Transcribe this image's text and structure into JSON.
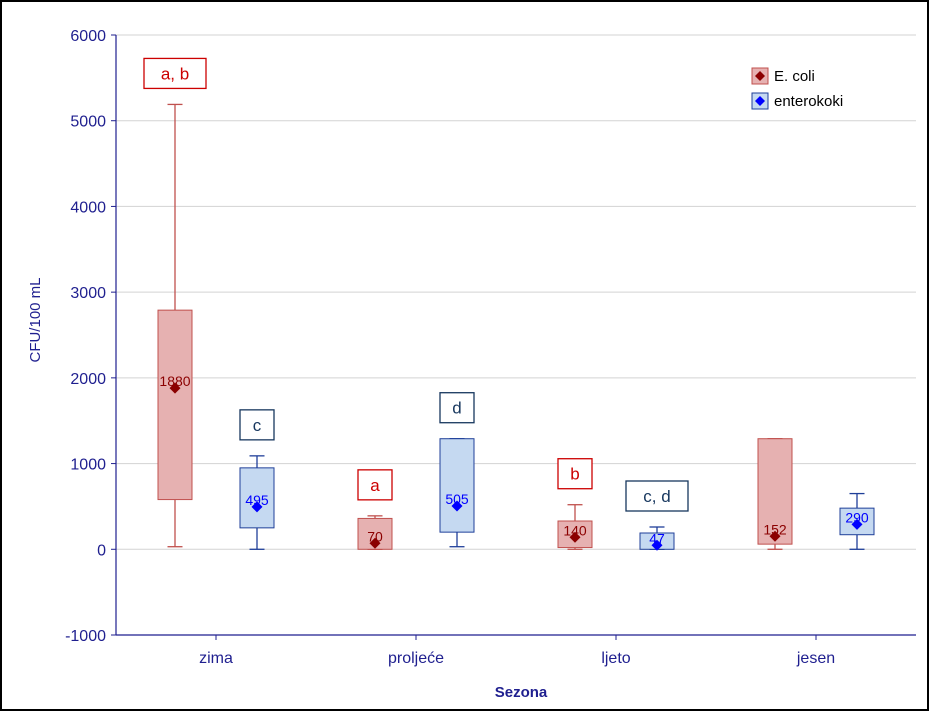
{
  "chart_data": {
    "type": "box",
    "xlabel": "Sezona",
    "ylabel": "CFU/100 mL",
    "ylim": [
      -1000,
      6000
    ],
    "yticks": [
      -1000,
      0,
      1000,
      2000,
      3000,
      4000,
      5000,
      6000
    ],
    "categories": [
      "zima",
      "proljeće",
      "ljeto",
      "jesen"
    ],
    "grid": "horizontal",
    "legend_position": "top-right",
    "series": [
      {
        "name": "E. coli",
        "box_color": "#e6b1b1",
        "line_color": "#c0504d",
        "marker_color": "#8b0000",
        "label_color": "#8b0000",
        "boxes": [
          {
            "category": "zima",
            "whisker_low": 30,
            "q1": 580,
            "median": 1880,
            "q3": 2790,
            "whisker_high": 5190,
            "median_label": "1880",
            "sig_label": "a, b"
          },
          {
            "category": "proljeće",
            "whisker_low": 0,
            "q1": 0,
            "median": 70,
            "q3": 360,
            "whisker_high": 390,
            "median_label": "70",
            "sig_label": "a"
          },
          {
            "category": "ljeto",
            "whisker_low": 0,
            "q1": 20,
            "median": 140,
            "q3": 330,
            "whisker_high": 520,
            "median_label": "140",
            "sig_label": "b"
          },
          {
            "category": "jesen",
            "whisker_low": 0,
            "q1": 60,
            "median": 152,
            "q3": 1290,
            "whisker_high": 1290,
            "median_label": "152",
            "sig_label": ""
          }
        ]
      },
      {
        "name": "enterokoki",
        "box_color": "#c5d9f1",
        "line_color": "#1f3f99",
        "marker_color": "#0000ff",
        "label_color": "#0000ff",
        "boxes": [
          {
            "category": "zima",
            "whisker_low": 0,
            "q1": 250,
            "median": 495,
            "q3": 950,
            "whisker_high": 1090,
            "median_label": "495",
            "sig_label": "c"
          },
          {
            "category": "proljeće",
            "whisker_low": 30,
            "q1": 200,
            "median": 505,
            "q3": 1290,
            "whisker_high": 1290,
            "median_label": "505",
            "sig_label": "d"
          },
          {
            "category": "ljeto",
            "whisker_low": 0,
            "q1": 0,
            "median": 47,
            "q3": 190,
            "whisker_high": 260,
            "median_label": "47",
            "sig_label": "c, d"
          },
          {
            "category": "jesen",
            "whisker_low": 0,
            "q1": 170,
            "median": 290,
            "q3": 480,
            "whisker_high": 650,
            "median_label": "290",
            "sig_label": ""
          }
        ]
      }
    ]
  },
  "colors": {
    "axis": "#1f1f8f",
    "grid": "#d3d3d3",
    "frame": "#000000"
  }
}
